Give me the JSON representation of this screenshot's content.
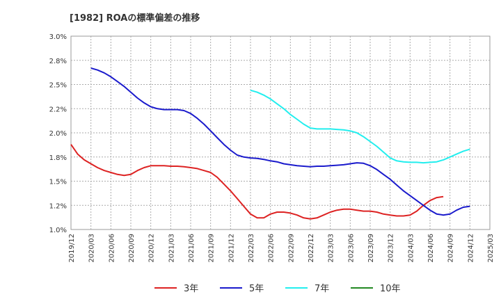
{
  "chart_data": {
    "type": "line",
    "title": "[1982]  ROAの標準偏差の推移",
    "xlabel": "",
    "ylabel": "",
    "ylim": [
      1.0,
      3.0
    ],
    "yticks": [
      "3.0%",
      "2.8%",
      "2.5%",
      "2.2%",
      "2.0%",
      "1.8%",
      "1.5%",
      "1.2%",
      "1.0%"
    ],
    "ytick_values": [
      3.0,
      2.75,
      2.5,
      2.25,
      2.0,
      1.75,
      1.5,
      1.25,
      1.0
    ],
    "xticks": [
      "2019/12",
      "2020/03",
      "2020/06",
      "2020/09",
      "2020/12",
      "2021/03",
      "2021/06",
      "2021/09",
      "2021/12",
      "2022/03",
      "2022/06",
      "2022/09",
      "2022/12",
      "2023/03",
      "2023/06",
      "2023/09",
      "2023/12",
      "2024/03",
      "2024/06",
      "2024/09",
      "2024/12",
      "2025/03"
    ],
    "grid": true,
    "legend": "bottom",
    "series": [
      {
        "name": "3年",
        "color": "#dd2222",
        "start_index": 0,
        "values": [
          1.88,
          1.78,
          1.72,
          1.68,
          1.64,
          1.61,
          1.59,
          1.57,
          1.56,
          1.57,
          1.61,
          1.64,
          1.66,
          1.66,
          1.66,
          1.655,
          1.655,
          1.65,
          1.64,
          1.63,
          1.61,
          1.59,
          1.54,
          1.47,
          1.4,
          1.32,
          1.24,
          1.16,
          1.12,
          1.12,
          1.16,
          1.18,
          1.18,
          1.17,
          1.15,
          1.12,
          1.11,
          1.12,
          1.15,
          1.18,
          1.2,
          1.21,
          1.21,
          1.2,
          1.19,
          1.19,
          1.18,
          1.16,
          1.15,
          1.14,
          1.14,
          1.15,
          1.19,
          1.25,
          1.3,
          1.33,
          1.34
        ]
      },
      {
        "name": "5年",
        "color": "#1a1acc",
        "start_index": 3,
        "values": [
          2.67,
          2.65,
          2.62,
          2.58,
          2.53,
          2.48,
          2.42,
          2.36,
          2.31,
          2.27,
          2.25,
          2.24,
          2.24,
          2.24,
          2.23,
          2.2,
          2.15,
          2.09,
          2.02,
          1.95,
          1.88,
          1.82,
          1.77,
          1.75,
          1.74,
          1.735,
          1.725,
          1.71,
          1.7,
          1.68,
          1.67,
          1.66,
          1.655,
          1.65,
          1.655,
          1.655,
          1.66,
          1.665,
          1.67,
          1.68,
          1.69,
          1.685,
          1.66,
          1.62,
          1.57,
          1.52,
          1.46,
          1.4,
          1.35,
          1.3,
          1.25,
          1.2,
          1.16,
          1.15,
          1.16,
          1.2,
          1.23,
          1.24
        ]
      },
      {
        "name": "7年",
        "color": "#22eeee",
        "start_index": 27,
        "values": [
          2.44,
          2.42,
          2.39,
          2.35,
          2.3,
          2.25,
          2.19,
          2.14,
          2.09,
          2.05,
          2.04,
          2.04,
          2.04,
          2.035,
          2.03,
          2.02,
          2.0,
          1.96,
          1.91,
          1.86,
          1.8,
          1.74,
          1.71,
          1.7,
          1.695,
          1.695,
          1.69,
          1.695,
          1.7,
          1.72,
          1.75,
          1.78,
          1.81,
          1.83
        ]
      },
      {
        "name": "10年",
        "color": "#228822",
        "start_index": 0,
        "values": []
      }
    ]
  }
}
